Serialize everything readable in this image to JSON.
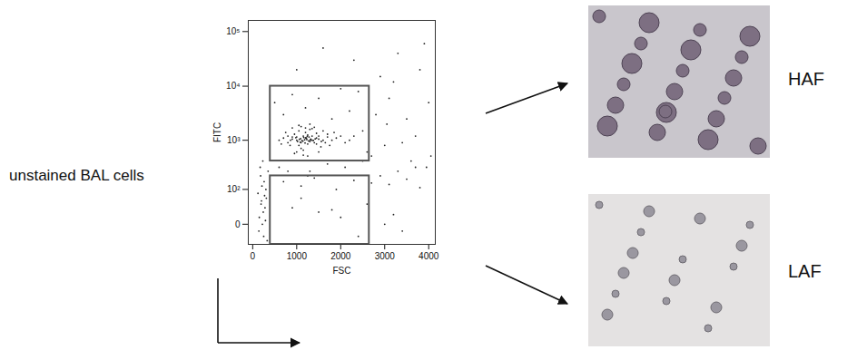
{
  "label": "unstained BAL cells",
  "chart_data": {
    "type": "scatter",
    "xlabel": "FSC",
    "ylabel": "FITC",
    "color": "#222222",
    "xlim": [
      -100,
      4150
    ],
    "ylim": [
      -40,
      160000
    ],
    "xticks": [
      0,
      1000,
      2000,
      3000,
      4000
    ],
    "yticks": [
      0,
      {
        "value": 100,
        "label": "10²"
      },
      {
        "value": 1000,
        "label": "10³"
      },
      {
        "value": 10000,
        "label": "10⁴"
      },
      {
        "value": 100000,
        "label": "10⁵"
      }
    ],
    "gates": [
      {
        "name": "HAF",
        "x": [
          400,
          2650
        ],
        "y": [
          400,
          10000
        ]
      },
      {
        "name": "LAF",
        "x": [
          400,
          2650
        ],
        "y": [
          -40,
          200
        ]
      }
    ],
    "x": [
      1000,
      1100,
      1200,
      1300,
      900,
      1150,
      1250,
      1050,
      1350,
      1450,
      800,
      950,
      1100,
      1200,
      1400,
      1500,
      1600,
      1000,
      1250,
      1150,
      700,
      850,
      1050,
      1300,
      1550,
      1700,
      1800,
      1350,
      1450,
      1650,
      1120,
      1180,
      1220,
      1080,
      1280,
      1320,
      980,
      1020,
      1380,
      1420,
      600,
      750,
      900,
      1000,
      1600,
      1900,
      2000,
      1750,
      2100,
      1850,
      1100,
      1250,
      950,
      1300,
      1500,
      1050,
      1200,
      1400,
      1150,
      1350,
      1230,
      1160,
      1270,
      1090,
      1310,
      1190,
      1060,
      1240,
      1140,
      1210,
      1500,
      1560,
      900,
      860,
      1700,
      2200,
      650,
      1450,
      2300,
      800,
      2500,
      2800,
      3000,
      3200,
      3500,
      3800,
      4000,
      2600,
      3300,
      3700,
      2400,
      2700,
      3100,
      3400,
      3900,
      2900,
      3600,
      2200,
      3050,
      3950,
      500,
      700,
      900,
      1200,
      1500,
      1800,
      2000,
      2300,
      1000,
      1600,
      600,
      800,
      1300,
      1700,
      2100,
      2500,
      2900,
      3300,
      3700,
      4050,
      700,
      1100,
      1400,
      1900,
      2300,
      2700,
      3100,
      3500,
      3800,
      1250,
      900,
      1500,
      2000,
      2600,
      3000,
      3400,
      1800,
      2400,
      3200,
      1100,
      150,
      200,
      250,
      300,
      180,
      220,
      280,
      120,
      330,
      260,
      170,
      240,
      310,
      140,
      290,
      210,
      350,
      190,
      230,
      270
    ],
    "values": [
      1000,
      900,
      1100,
      950,
      1050,
      1200,
      850,
      800,
      1000,
      1100,
      900,
      1300,
      700,
      1400,
      900,
      1200,
      1000,
      1150,
      1250,
      650,
      1100,
      800,
      1500,
      1600,
      750,
      1300,
      1000,
      1200,
      850,
      900,
      980,
      1020,
      1080,
      920,
      1150,
      1050,
      1120,
      950,
      990,
      1060,
      1000,
      1400,
      1700,
      600,
      1500,
      1100,
      1200,
      800,
      900,
      1400,
      1800,
      500,
      560,
      2000,
      600,
      1900,
      1700,
      1750,
      520,
      1650,
      1030,
      1130,
      970,
      1070,
      1010,
      890,
      1040,
      1180,
      960,
      1110,
      1050,
      950,
      1150,
      1000,
      1150,
      1000,
      850,
      1350,
      1200,
      1200,
      1500,
      3000,
      800,
      12000,
      2500,
      20000,
      5000,
      600,
      40000,
      1200,
      8000,
      500,
      6000,
      900,
      60000,
      15000,
      400,
      3500,
      2000,
      300,
      5000,
      3000,
      7000,
      4000,
      6000,
      2500,
      9000,
      30000,
      20000,
      50000,
      300,
      250,
      250,
      350,
      300,
      400,
      200,
      250,
      300,
      500,
      150,
      120,
      180,
      100,
      160,
      140,
      130,
      170,
      110,
      200,
      30,
      20,
      10,
      40,
      0,
      -10,
      25,
      -20,
      15,
      60,
      10,
      50,
      -20,
      100,
      200,
      0,
      30,
      80,
      -30,
      150,
      300,
      20,
      60,
      -10,
      5,
      120,
      250,
      40,
      400,
      70
    ]
  }
}
